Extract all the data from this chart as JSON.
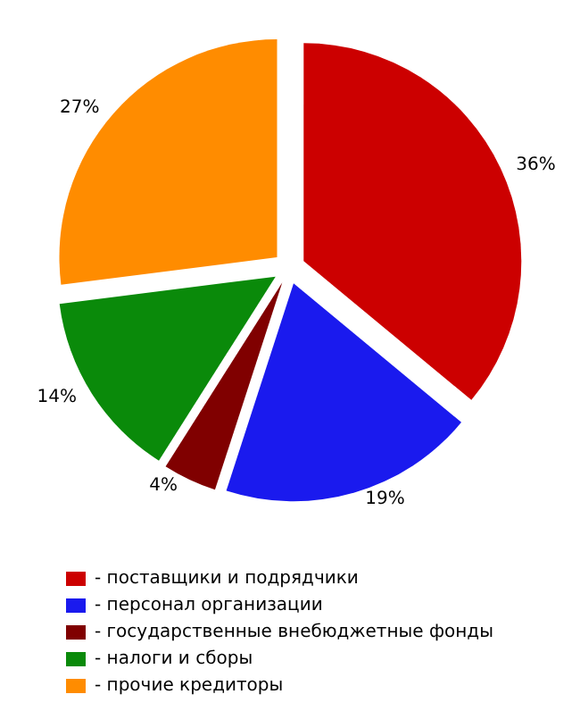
{
  "chart_data": {
    "type": "pie",
    "categories": [
      "- поставщики и подрядчики",
      "- персонал организации",
      "- государственные внебюджетные фонды",
      "- налоги и сборы",
      "- прочие кредиторы"
    ],
    "values": [
      36,
      19,
      4,
      14,
      27
    ],
    "colors": [
      "#cc0000",
      "#1a1aee",
      "#800000",
      "#0a8a0a",
      "#ff8c00"
    ],
    "value_labels": [
      "36%",
      "19%",
      "4%",
      "14%",
      "27%"
    ],
    "legend": "bottom"
  }
}
